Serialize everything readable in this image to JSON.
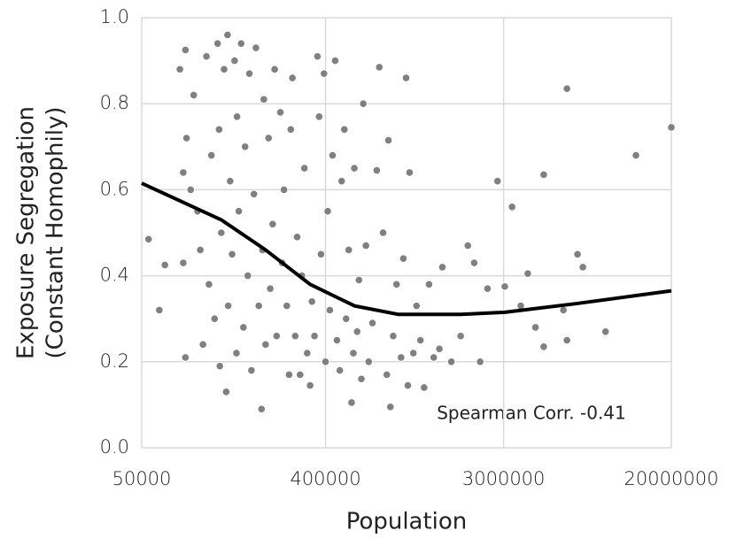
{
  "chart_data": {
    "type": "scatter",
    "xlabel": "Population",
    "ylabel": [
      "Exposure Segregation",
      "(Constant Homophily)"
    ],
    "annotation": "Spearman Corr. -0.41",
    "xscale": "log",
    "grid": true,
    "xlim": [
      50000,
      20000000
    ],
    "xticks": [
      50000,
      400000,
      3000000,
      20000000
    ],
    "ylim": [
      0,
      1
    ],
    "yticks": [
      {
        "value": 0,
        "label": "0.0"
      },
      0.2,
      0.4,
      0.6,
      0.8,
      {
        "value": 1,
        "label": "1.0"
      }
    ],
    "series": [
      {
        "type": "scatter",
        "color": "#808080",
        "x": [
          54000,
          61000,
          65000,
          77000,
          80000,
          82000,
          83000,
          80000,
          82000,
          87000,
          90000,
          94000,
          97000,
          100000,
          104000,
          107000,
          110000,
          114000,
          118000,
          120000,
          121000,
          123000,
          127000,
          130000,
          132000,
          133000,
          136000,
          139000,
          143000,
          146000,
          147000,
          150000,
          154000,
          158000,
          161000,
          166000,
          169000,
          173000,
          178000,
          182000,
          188000,
          194000,
          196000,
          199000,
          203000,
          210000,
          214000,
          220000,
          225000,
          230000,
          240000,
          245000,
          250000,
          258000,
          265000,
          270000,
          275000,
          284000,
          290000,
          300000,
          306000,
          315000,
          325000,
          336000,
          343000,
          353000,
          365000,
          372000,
          380000,
          393000,
          400000,
          410000,
          420000,
          433000,
          446000,
          455000,
          470000,
          480000,
          495000,
          505000,
          520000,
          537000,
          548000,
          554000,
          572000,
          584000,
          600000,
          613000,
          632000,
          652000,
          680000,
          714000,
          735000,
          767000,
          800000,
          815000,
          833000,
          860000,
          893000,
          940000,
          965000,
          995000,
          1015000,
          1035000,
          1080000,
          1120000,
          1170000,
          1220000,
          1290000,
          1360000,
          1450000,
          1500000,
          1660000,
          1845000,
          2000000,
          2150000,
          2300000,
          2500000,
          2800000,
          3040000,
          3300000,
          3640000,
          3940000,
          4300000,
          4720000,
          4720000,
          5900000,
          6140000,
          6140000,
          6920000,
          7350000,
          9500000,
          13400000,
          20000000
        ],
        "values": [
          0.485,
          0.32,
          0.425,
          0.88,
          0.64,
          0.925,
          0.72,
          0.43,
          0.21,
          0.6,
          0.82,
          0.55,
          0.46,
          0.24,
          0.91,
          0.38,
          0.68,
          0.3,
          0.94,
          0.74,
          0.19,
          0.5,
          0.88,
          0.13,
          0.96,
          0.33,
          0.62,
          0.45,
          0.9,
          0.22,
          0.77,
          0.55,
          0.94,
          0.28,
          0.7,
          0.4,
          0.87,
          0.18,
          0.59,
          0.93,
          0.33,
          0.09,
          0.46,
          0.81,
          0.24,
          0.72,
          0.37,
          0.52,
          0.88,
          0.26,
          0.78,
          0.43,
          0.6,
          0.33,
          0.17,
          0.74,
          0.86,
          0.26,
          0.49,
          0.17,
          0.4,
          0.65,
          0.22,
          0.145,
          0.34,
          0.26,
          0.91,
          0.77,
          0.45,
          0.87,
          0.2,
          0.55,
          0.32,
          0.68,
          0.9,
          0.25,
          0.18,
          0.62,
          0.74,
          0.3,
          0.46,
          0.105,
          0.22,
          0.65,
          0.27,
          0.39,
          0.16,
          0.8,
          0.47,
          0.2,
          0.29,
          0.645,
          0.885,
          0.5,
          0.17,
          0.715,
          0.095,
          0.26,
          0.38,
          0.21,
          0.44,
          0.86,
          0.145,
          0.64,
          0.22,
          0.33,
          0.25,
          0.14,
          0.38,
          0.21,
          0.23,
          0.42,
          0.2,
          0.26,
          0.47,
          0.43,
          0.2,
          0.37,
          0.62,
          0.375,
          0.56,
          0.33,
          0.405,
          0.28,
          0.235,
          0.635,
          0.32,
          0.835,
          0.25,
          0.45,
          0.42,
          0.27,
          0.68,
          0.745
        ]
      },
      {
        "type": "line",
        "color": "#000000",
        "x": [
          50000,
          123000,
          203000,
          336000,
          554000,
          914000,
          1845000,
          3040000,
          6780000,
          20000000
        ],
        "values": [
          0.615,
          0.53,
          0.46,
          0.38,
          0.33,
          0.31,
          0.31,
          0.315,
          0.335,
          0.365
        ]
      }
    ]
  }
}
